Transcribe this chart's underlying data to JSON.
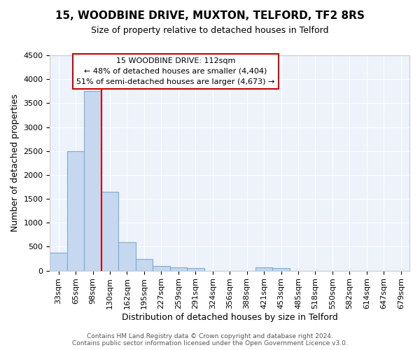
{
  "title": "15, WOODBINE DRIVE, MUXTON, TELFORD, TF2 8RS",
  "subtitle": "Size of property relative to detached houses in Telford",
  "xlabel": "Distribution of detached houses by size in Telford",
  "ylabel": "Number of detached properties",
  "categories": [
    "33sqm",
    "65sqm",
    "98sqm",
    "130sqm",
    "162sqm",
    "195sqm",
    "227sqm",
    "259sqm",
    "291sqm",
    "324sqm",
    "356sqm",
    "388sqm",
    "421sqm",
    "453sqm",
    "485sqm",
    "518sqm",
    "550sqm",
    "582sqm",
    "614sqm",
    "647sqm",
    "679sqm"
  ],
  "values": [
    375,
    2500,
    3750,
    1650,
    600,
    240,
    100,
    60,
    50,
    0,
    0,
    0,
    60,
    55,
    0,
    0,
    0,
    0,
    0,
    0,
    0
  ],
  "bar_color": "#c5d8f0",
  "bar_edgecolor": "#7aadd4",
  "bar_linewidth": 0.8,
  "vline_x": 2.5,
  "vline_color": "#cc0000",
  "vline_linewidth": 1.5,
  "ylim": [
    0,
    4500
  ],
  "yticks": [
    0,
    500,
    1000,
    1500,
    2000,
    2500,
    3000,
    3500,
    4000,
    4500
  ],
  "annotation_line1": "15 WOODBINE DRIVE: 112sqm",
  "annotation_line2": "← 48% of detached houses are smaller (4,404)",
  "annotation_line3": "51% of semi-detached houses are larger (4,673) →",
  "annotation_fontsize": 8,
  "bg_color": "#edf2fb",
  "grid_color": "#ffffff",
  "footer_line1": "Contains HM Land Registry data © Crown copyright and database right 2024.",
  "footer_line2": "Contains public sector information licensed under the Open Government Licence v3.0.",
  "title_fontsize": 11,
  "subtitle_fontsize": 9,
  "xlabel_fontsize": 9,
  "ylabel_fontsize": 9,
  "tick_fontsize": 8
}
